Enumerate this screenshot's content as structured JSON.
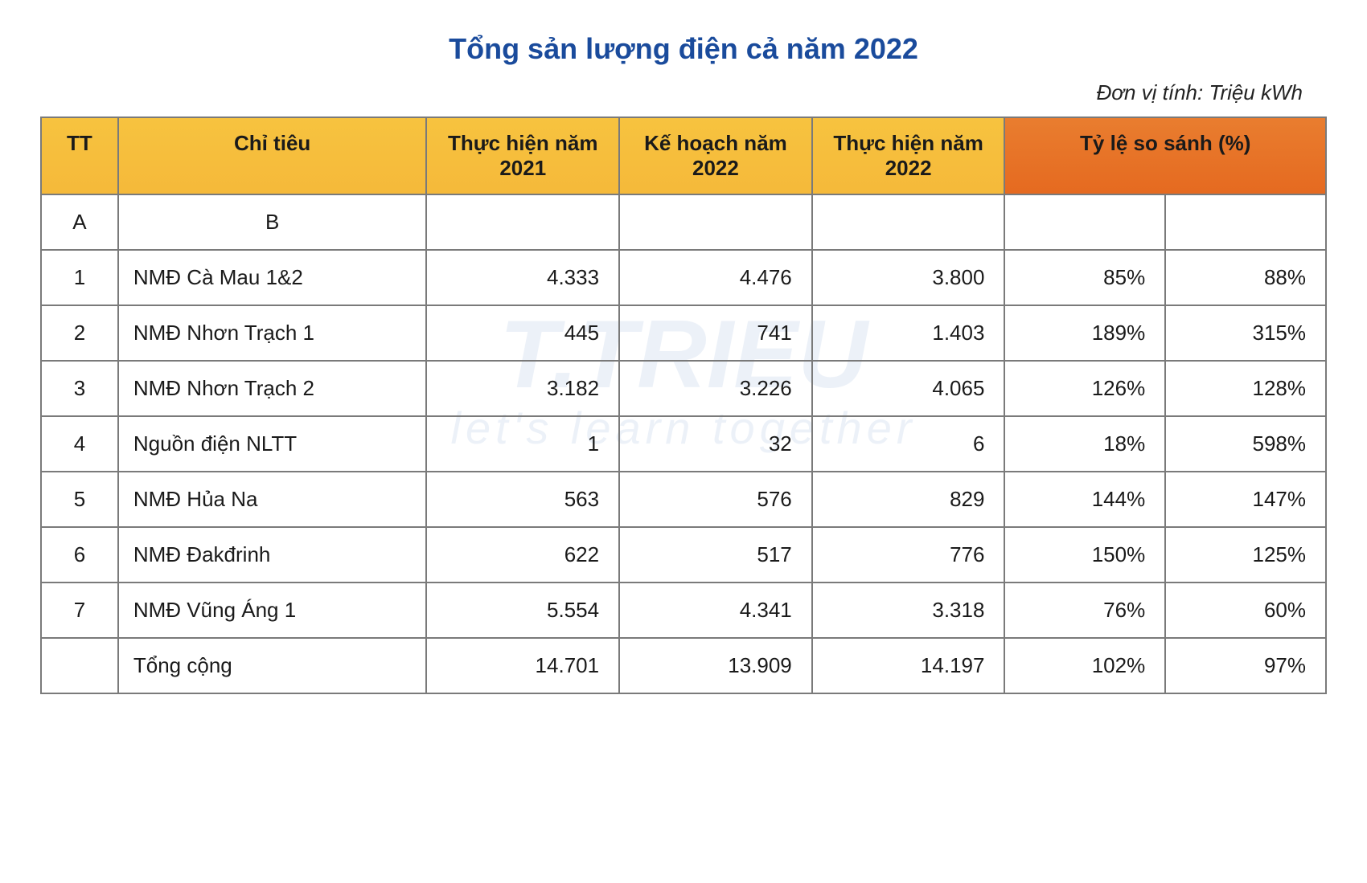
{
  "title": "Tổng sản lượng điện cả năm 2022",
  "unit_label": "Đơn vị tính: Triệu kWh",
  "watermark_main": "T.TRIEU",
  "watermark_sub": "let's learn together",
  "colors": {
    "title": "#1a4b9c",
    "header_yellow_top": "#f7c33f",
    "header_yellow_bottom": "#f5b93a",
    "header_orange_top": "#e97d2f",
    "header_orange_bottom": "#e56a20",
    "border": "#7a7a7a",
    "text": "#1a1a1a",
    "watermark": "rgba(200,215,235,0.35)"
  },
  "table": {
    "columns": [
      {
        "key": "tt",
        "label": "TT",
        "group": "yellow",
        "width_pct": 6
      },
      {
        "key": "name",
        "label": "Chỉ tiêu",
        "group": "yellow",
        "width_pct": 24
      },
      {
        "key": "th21",
        "label": "Thực hiện năm 2021",
        "group": "yellow",
        "width_pct": 15
      },
      {
        "key": "kh22",
        "label": "Kế hoạch năm 2022",
        "group": "yellow",
        "width_pct": 15
      },
      {
        "key": "th22",
        "label": "Thực hiện năm 2022",
        "group": "yellow",
        "width_pct": 15
      },
      {
        "key": "comp",
        "label": "Tỷ lệ so sánh (%)",
        "group": "orange",
        "width_pct": 25,
        "colspan": 2
      }
    ],
    "subheader": {
      "tt": "A",
      "name": "B",
      "th21": "",
      "kh22": "",
      "th22": "",
      "comp1": "",
      "comp2": ""
    },
    "rows": [
      {
        "tt": "1",
        "name": "NMĐ Cà Mau 1&2",
        "th21": "4.333",
        "kh22": "4.476",
        "th22": "3.800",
        "comp1": "85%",
        "comp2": "88%"
      },
      {
        "tt": "2",
        "name": "NMĐ Nhơn Trạch 1",
        "th21": "445",
        "kh22": "741",
        "th22": "1.403",
        "comp1": "189%",
        "comp2": "315%"
      },
      {
        "tt": "3",
        "name": "NMĐ Nhơn Trạch 2",
        "th21": "3.182",
        "kh22": "3.226",
        "th22": "4.065",
        "comp1": "126%",
        "comp2": "128%"
      },
      {
        "tt": "4",
        "name": "Nguồn điện NLTT",
        "th21": "1",
        "kh22": "32",
        "th22": "6",
        "comp1": "18%",
        "comp2": "598%"
      },
      {
        "tt": "5",
        "name": "NMĐ Hủa Na",
        "th21": "563",
        "kh22": "576",
        "th22": "829",
        "comp1": "144%",
        "comp2": "147%"
      },
      {
        "tt": "6",
        "name": "NMĐ Đakđrinh",
        "th21": "622",
        "kh22": "517",
        "th22": "776",
        "comp1": "150%",
        "comp2": "125%"
      },
      {
        "tt": "7",
        "name": "NMĐ Vũng Áng 1",
        "th21": "5.554",
        "kh22": "4.341",
        "th22": "3.318",
        "comp1": "76%",
        "comp2": "60%"
      },
      {
        "tt": "",
        "name": "Tổng cộng",
        "th21": "14.701",
        "kh22": "13.909",
        "th22": "14.197",
        "comp1": "102%",
        "comp2": "97%"
      }
    ]
  }
}
